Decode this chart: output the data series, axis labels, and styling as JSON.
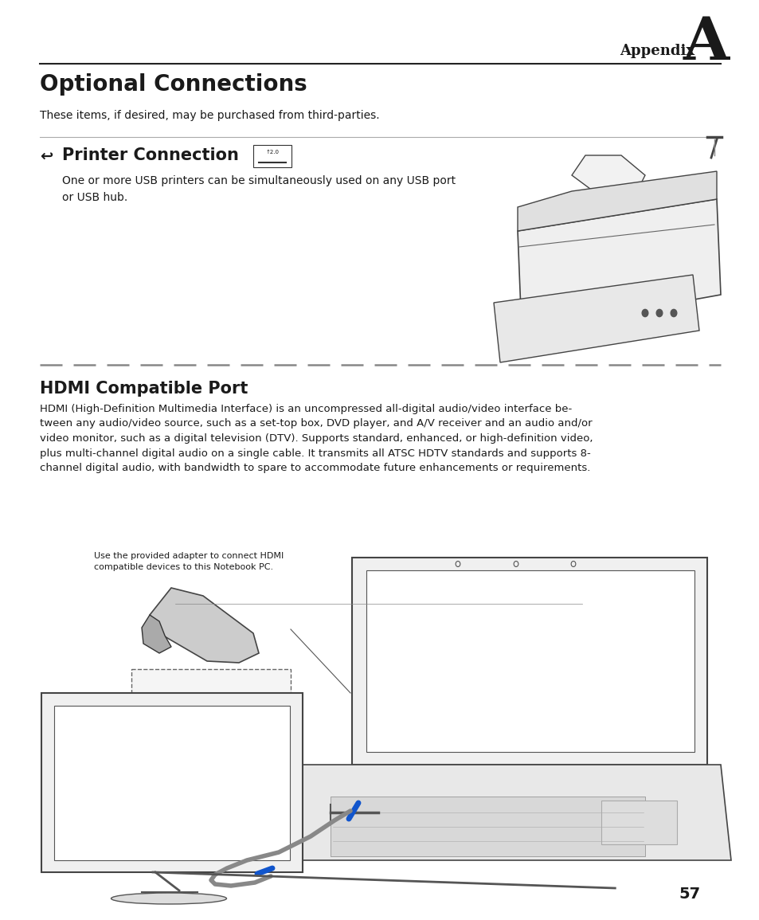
{
  "bg_color": "#ffffff",
  "text_color": "#1a1a1a",
  "page_width": 9.54,
  "page_height": 11.55,
  "appendix_label": "Appendix",
  "appendix_letter": "A",
  "main_title": "Optional Connections",
  "subtitle": "These items, if desired, may be purchased from third-parties.",
  "section1_title_icon": "↩",
  "section1_title_text": "Printer Connection",
  "section1_body": "One or more USB printers can be simultaneously used on any USB port\nor USB hub.",
  "section2_title": "HDMI Compatible Port",
  "section2_body": "HDMI (High-Definition Multimedia Interface) is an uncompressed all-digital audio/video interface be-\ntween any audio/video source, such as a set-top box, DVD player, and A/V receiver and an audio and/or\nvideo monitor, such as a digital television (DTV). Supports standard, enhanced, or high-definition video,\nplus multi-channel digital audio on a single cable. It transmits all ATSC HDTV standards and supports 8-\nchannel digital audio, with bandwidth to spare to accommodate future enhancements or requirements.",
  "hdmi_caption": "Use the provided adapter to connect HDMI\ncompatible devices to this Notebook PC.",
  "page_number": "57"
}
